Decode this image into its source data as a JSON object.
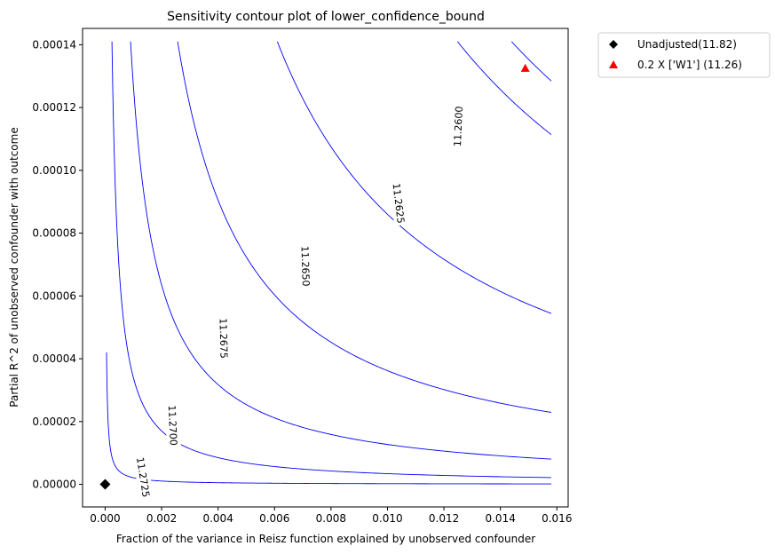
{
  "chart_data": {
    "type": "contour",
    "title": "Sensitivity contour plot of lower_confidence_bound",
    "xlabel": "Fraction of the variance in Reisz function explained by unobserved confounder",
    "ylabel": "Partial R^2 of unobserved confounder with outcome",
    "xlim": [
      -0.0008,
      0.0164
    ],
    "ylim": [
      -7.2e-06,
      0.0001452
    ],
    "xticks": [
      0.0,
      0.002,
      0.004,
      0.006,
      0.008,
      0.01,
      0.012,
      0.014,
      0.016
    ],
    "xtick_labels": [
      "0.000",
      "0.002",
      "0.004",
      "0.006",
      "0.008",
      "0.010",
      "0.012",
      "0.014",
      "0.016"
    ],
    "yticks": [
      0.0,
      2e-05,
      4e-05,
      6e-05,
      8e-05,
      0.0001,
      0.00012,
      0.00014
    ],
    "ytick_labels": [
      "0.00000",
      "0.00002",
      "0.00004",
      "0.00006",
      "0.00008",
      "0.00010",
      "0.00012",
      "0.00014"
    ],
    "contour_color": "#0000ff",
    "contours": [
      {
        "label": "11.2725",
        "k": 2.1e-09,
        "label_at": [
          0.00135,
          2.3e-06
        ]
      },
      {
        "label": "11.2700",
        "k": 3.4e-08,
        "label_at": [
          0.0024,
          1.88e-05
        ]
      },
      {
        "label": "11.2675",
        "k": 1.27e-07,
        "label_at": [
          0.0042,
          4.65e-05
        ]
      },
      {
        "label": "11.2650",
        "k": 3.62e-07,
        "label_at": [
          0.0071,
          6.95e-05
        ]
      },
      {
        "label": "11.2625",
        "k": 8.6e-07,
        "label_at": [
          0.0104,
          8.95e-05
        ]
      },
      {
        "label": "11.2600",
        "k": 1.76e-06,
        "label_at": [
          0.0125,
          0.000114
        ]
      },
      {
        "label": "",
        "k": 2.03e-06,
        "label_at": null
      }
    ],
    "points": [
      {
        "name": "Unadjusted(11.82)",
        "x": 0.0,
        "y": 0.0,
        "marker": "diamond",
        "color": "#000000"
      },
      {
        "name": "0.2 X ['W1'] (11.26)",
        "x": 0.01488,
        "y": 0.0001325,
        "marker": "triangle",
        "color": "#ff0000"
      }
    ],
    "legend_position": "outside-top-right",
    "grid": false
  }
}
